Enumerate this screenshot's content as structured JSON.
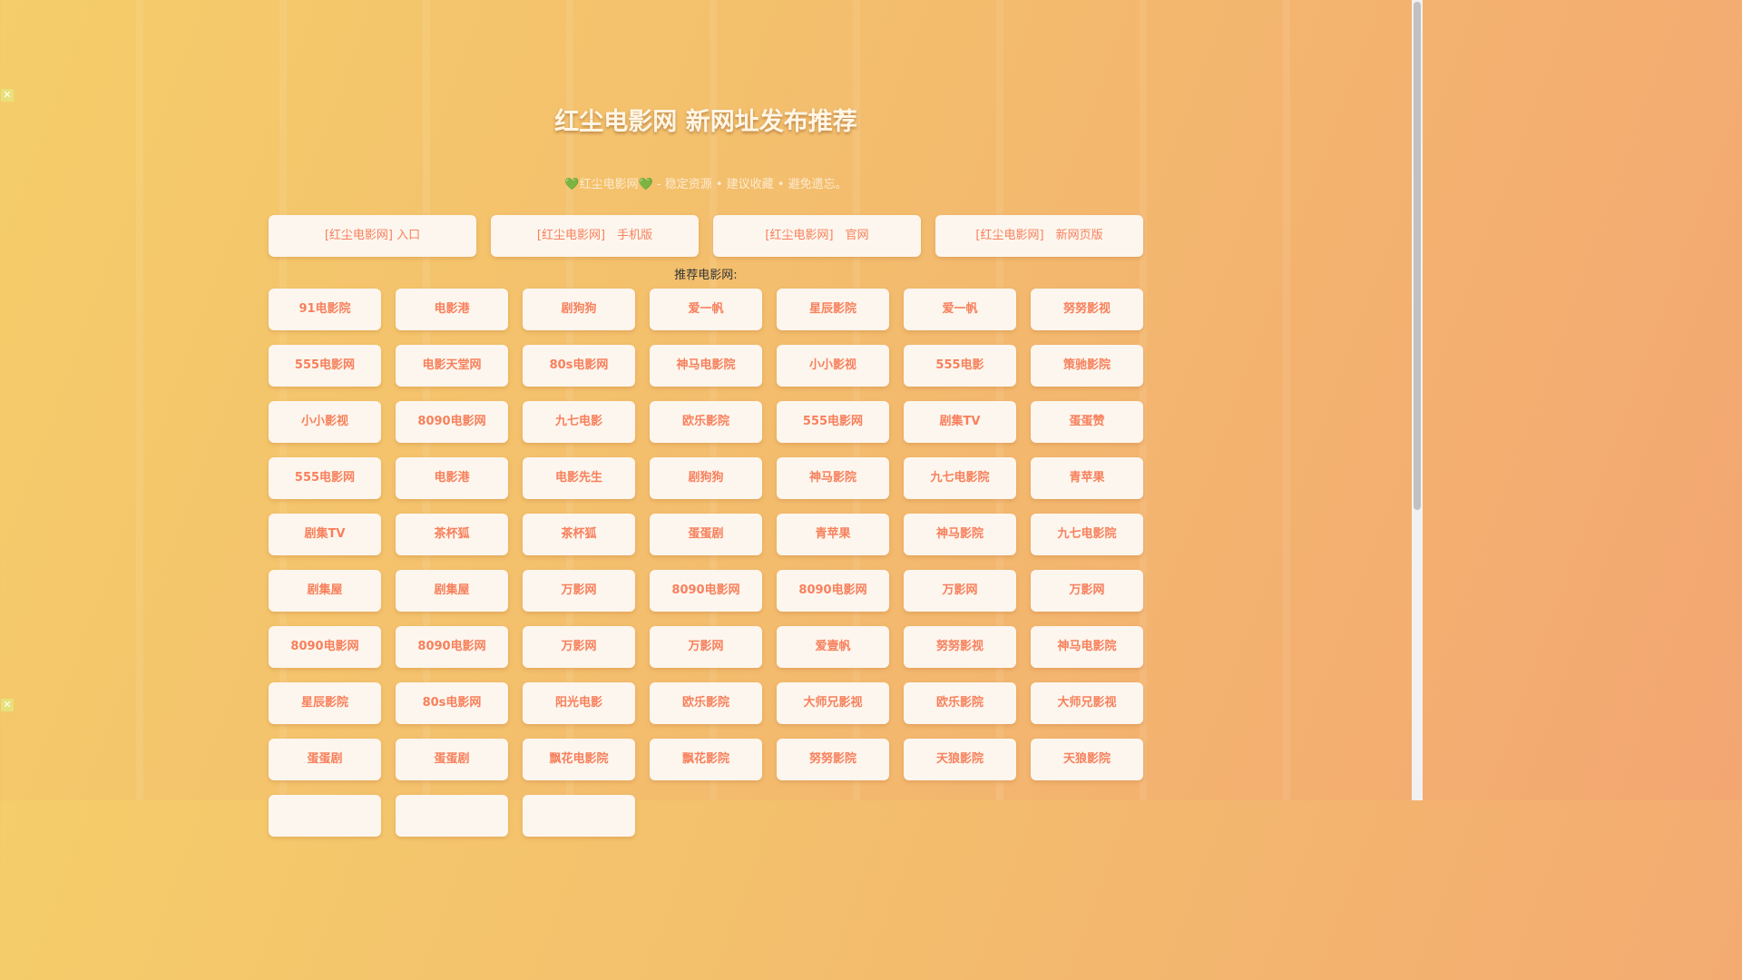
{
  "header": {
    "title": "红尘电影网 新网址发布推荐",
    "subtitle_heart": "💚",
    "subtitle_name": "红尘电影网",
    "subtitle_rest": " - 稳定资源 • 建议收藏 • 避免遗忘。"
  },
  "top_links": [
    "[红尘电影网] 入口",
    "[红尘电影网]　手机版",
    "[红尘电影网]　官网",
    "[红尘电影网]　新网页版"
  ],
  "recommend_label": "推荐电影网:",
  "sites": [
    "91电影院",
    "电影港",
    "剧狗狗",
    "爱一帆",
    "星辰影院",
    "爱一帆",
    "努努影视",
    "555电影网",
    "电影天堂网",
    "80s电影网",
    "神马电影院",
    "小小影视",
    "555电影",
    "策驰影院",
    "小小影视",
    "8090电影网",
    "九七电影",
    "欧乐影院",
    "555电影网",
    "剧集TV",
    "蛋蛋赞",
    "555电影网",
    "电影港",
    "电影先生",
    "剧狗狗",
    "神马影院",
    "九七电影院",
    "青苹果",
    "剧集TV",
    "茶杯狐",
    "茶杯狐",
    "蛋蛋剧",
    "青苹果",
    "神马影院",
    "九七电影院",
    "剧集屋",
    "剧集屋",
    "万影网",
    "8090电影网",
    "8090电影网",
    "万影网",
    "万影网",
    "8090电影网",
    "8090电影网",
    "万影网",
    "万影网",
    "爱壹帆",
    "努努影视",
    "神马电影院",
    "星辰影院",
    "80s电影网",
    "阳光电影",
    "欧乐影院",
    "大师兄影视",
    "欧乐影院",
    "大师兄影视",
    "蛋蛋剧",
    "蛋蛋剧",
    "飘花电影院",
    "飘花影院",
    "努努影院",
    "天狼影院",
    "天狼影院",
    "",
    "",
    ""
  ],
  "colors": {
    "accent": "#f7805c",
    "card": "#fdf6ee"
  }
}
